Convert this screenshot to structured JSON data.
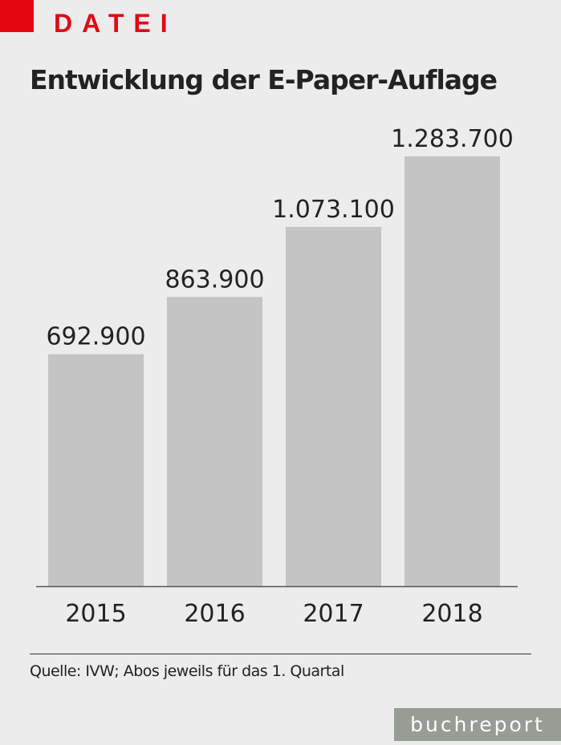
{
  "kicker": "DATEI",
  "colors": {
    "accent": "#e30613",
    "bar": "#c4c4c4",
    "brand_bg": "#979c94"
  },
  "chart_data": {
    "type": "bar",
    "title": "Entwicklung der E-Paper-Auflage",
    "categories": [
      "2015",
      "2016",
      "2017",
      "2018"
    ],
    "values": [
      692900,
      863900,
      1073100,
      1283700
    ],
    "data_labels": [
      "692.900",
      "863.900",
      "1.073.100",
      "1.283.700"
    ],
    "xlabel": "",
    "ylabel": "",
    "ylim": [
      0,
      1283700
    ],
    "grid": false
  },
  "source": "Quelle: IVW; Abos jeweils für das 1. Quartal",
  "brand": "buchreport"
}
